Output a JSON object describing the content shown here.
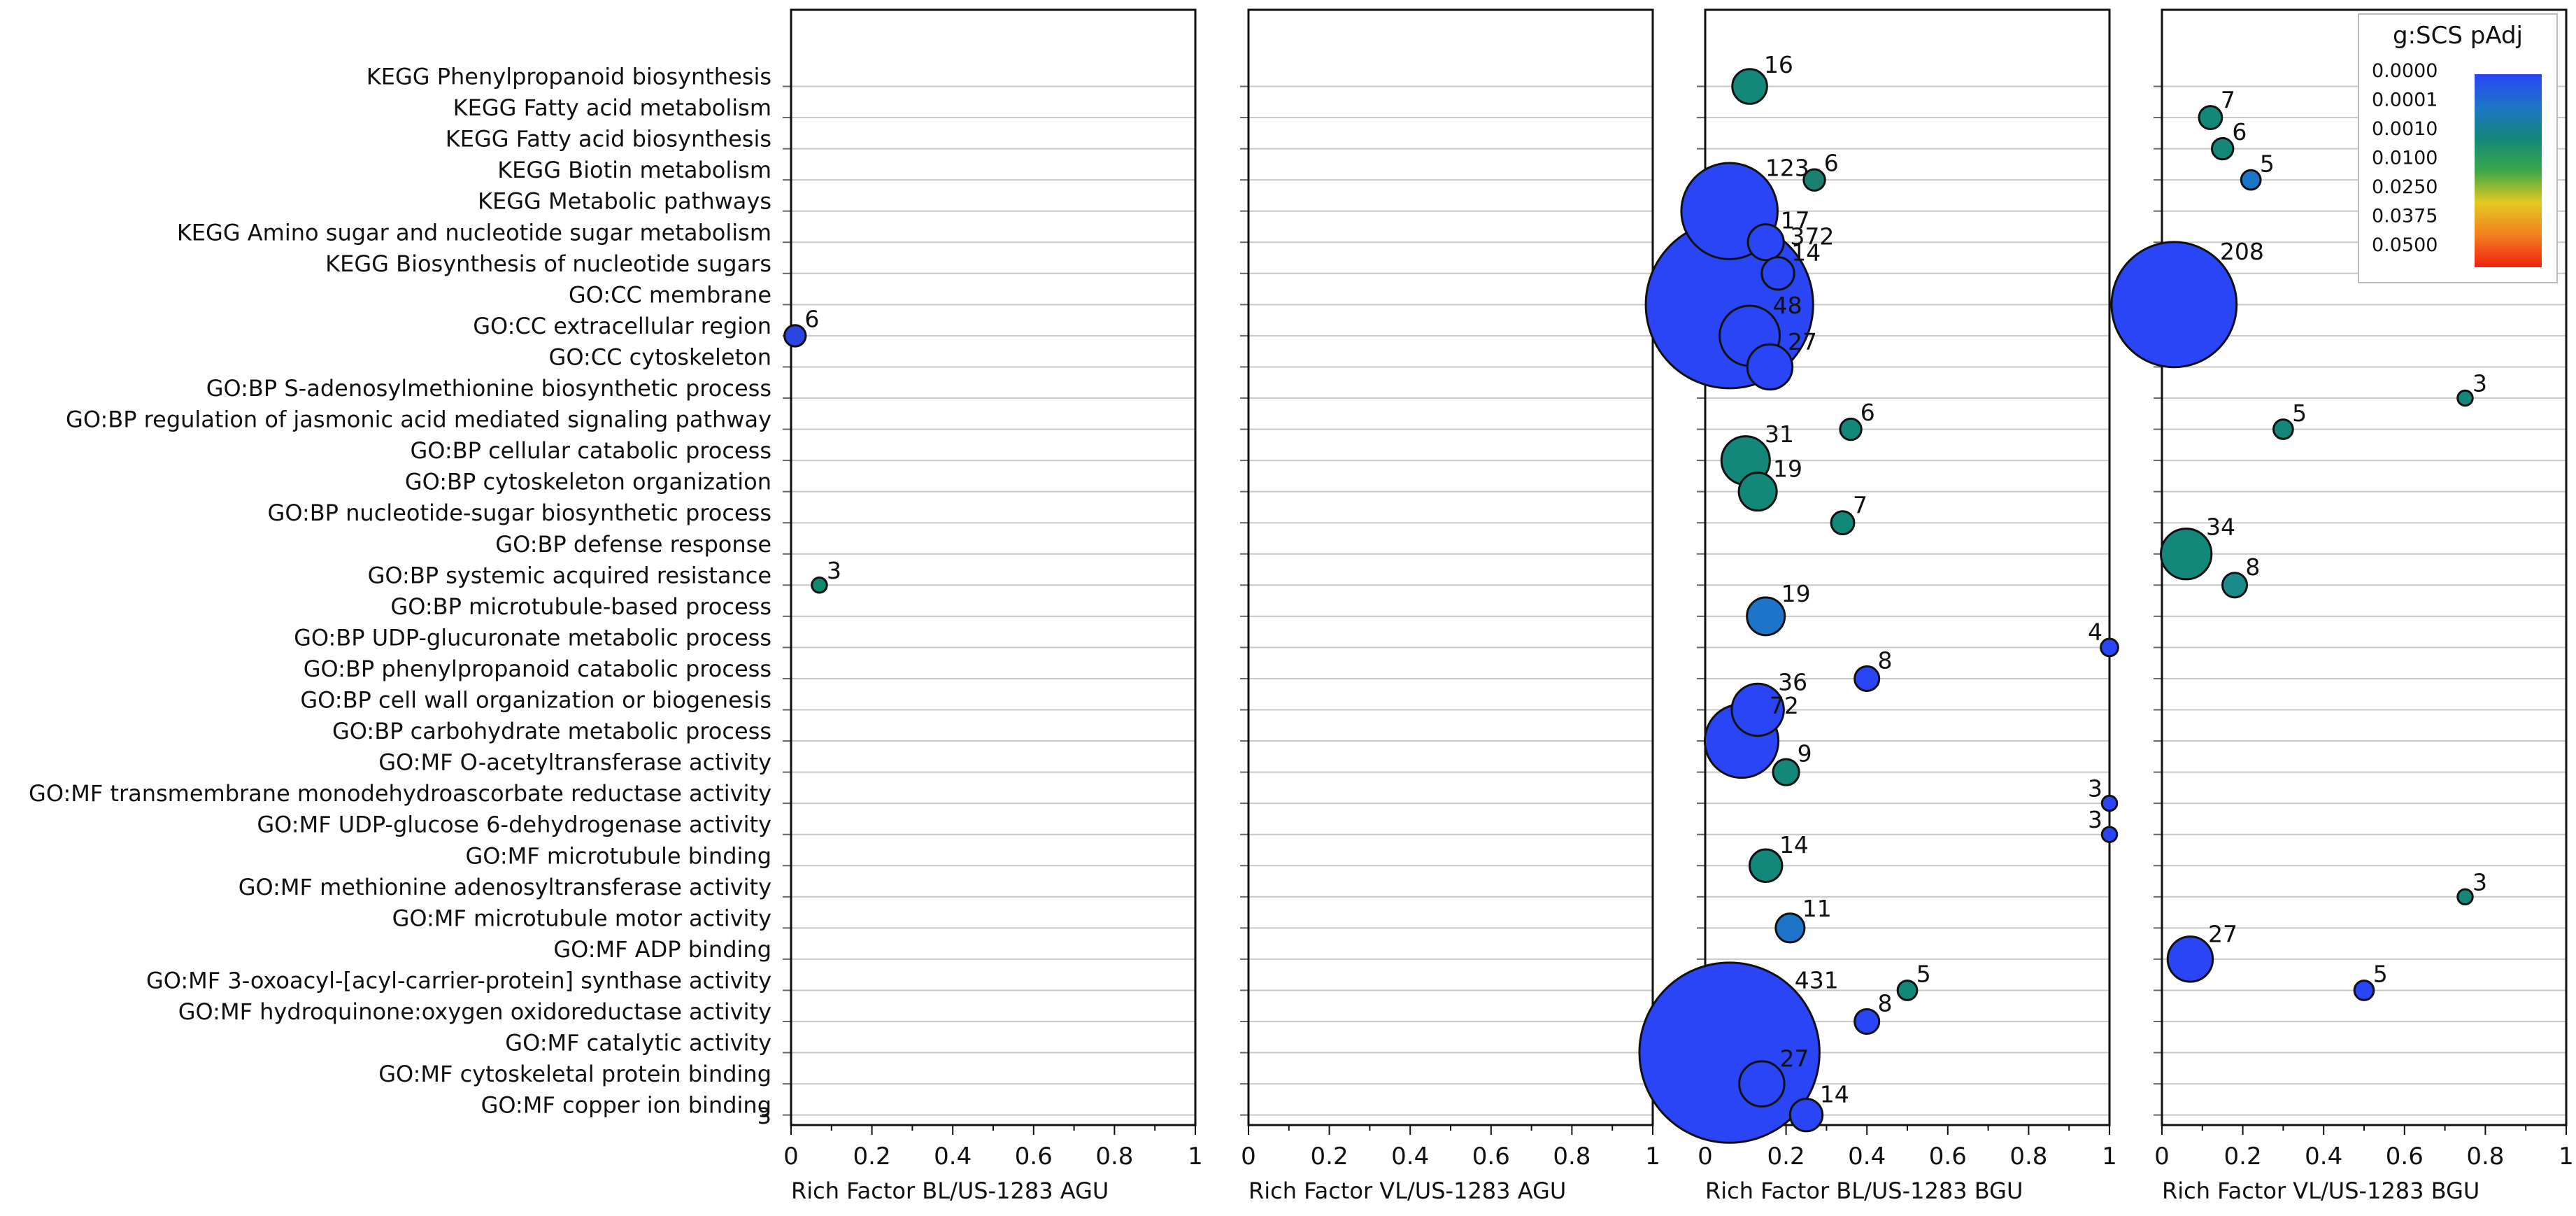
{
  "chart_data": {
    "type": "scatter",
    "subtype": "bubble",
    "categories": [
      "KEGG Phenylpropanoid biosynthesis",
      "KEGG Fatty acid metabolism",
      "KEGG Fatty acid biosynthesis",
      "KEGG Biotin metabolism",
      "KEGG Metabolic pathways",
      "KEGG Amino sugar and nucleotide sugar metabolism",
      "KEGG Biosynthesis of nucleotide sugars",
      "GO:CC membrane",
      "GO:CC extracellular region",
      "GO:CC cytoskeleton",
      "GO:BP S-adenosylmethionine biosynthetic process",
      "GO:BP regulation of jasmonic acid mediated signaling pathway",
      "GO:BP cellular catabolic process",
      "GO:BP cytoskeleton organization",
      "GO:BP nucleotide-sugar biosynthetic process",
      "GO:BP defense response",
      "GO:BP systemic acquired resistance",
      "GO:BP microtubule-based process",
      "GO:BP UDP-glucuronate metabolic process",
      "GO:BP phenylpropanoid catabolic process",
      "GO:BP cell wall organization or biogenesis",
      "GO:BP carbohydrate metabolic process",
      "GO:MF O-acetyltransferase activity",
      "GO:MF transmembrane monodehydroascorbate reductase activity",
      "GO:MF UDP-glucose 6-dehydrogenase activity",
      "GO:MF microtubule binding",
      "GO:MF methionine adenosyltransferase activity",
      "GO:MF microtubule motor activity",
      "GO:MF ADP binding",
      "GO:MF 3-oxoacyl-[acyl-carrier-protein] synthase activity",
      "GO:MF hydroquinone:oxygen oxidoreductase activity",
      "GO:MF catalytic activity",
      "GO:MF cytoskeletal protein binding",
      "GO:MF copper ion binding"
    ],
    "panels": [
      {
        "xlabel": "Rich Factor BL/US-1283 AGU",
        "points": [
          {
            "cat": 8,
            "x": 0.01,
            "count": 6,
            "label": "6",
            "color": "#2a45e0"
          },
          {
            "cat": 16,
            "x": 0.07,
            "count": 3,
            "label": "3",
            "color": "#0f8a6e"
          }
        ]
      },
      {
        "xlabel": "Rich Factor VL/US-1283 AGU",
        "points": []
      },
      {
        "xlabel": "Rich Factor BL/US-1283 BGU",
        "points": [
          {
            "cat": 0,
            "x": 0.11,
            "count": 16,
            "label": "16",
            "color": "#13877a"
          },
          {
            "cat": 3,
            "x": 0.27,
            "count": 6,
            "label": "6",
            "color": "#1a8070"
          },
          {
            "cat": 4,
            "x": 0.06,
            "count": 123,
            "label": "123",
            "color": "#2a45f5"
          },
          {
            "cat": 5,
            "x": 0.15,
            "count": 17,
            "label": "17",
            "color": "#2a45f5"
          },
          {
            "cat": 6,
            "x": 0.18,
            "count": 14,
            "label": "14",
            "color": "#2a45f5"
          },
          {
            "cat": 7,
            "x": 0.06,
            "count": 372,
            "label": "372",
            "color": "#2a45f5"
          },
          {
            "cat": 9,
            "x": 0.16,
            "count": 27,
            "label": "27",
            "color": "#2a45f5"
          },
          {
            "cat": 8,
            "x": 0.11,
            "count": 48,
            "label": "48",
            "color": "#2a45f5"
          },
          {
            "cat": 11,
            "x": 0.36,
            "count": 6,
            "label": "6",
            "color": "#13877a"
          },
          {
            "cat": 12,
            "x": 0.1,
            "count": 31,
            "label": "31",
            "color": "#13877a"
          },
          {
            "cat": 13,
            "x": 0.13,
            "count": 19,
            "label": "19",
            "color": "#13877a"
          },
          {
            "cat": 14,
            "x": 0.34,
            "count": 7,
            "label": "7",
            "color": "#13877a"
          },
          {
            "cat": 17,
            "x": 0.15,
            "count": 19,
            "label": "19",
            "color": "#1e74c8"
          },
          {
            "cat": 18,
            "x": 1.0,
            "count": 4,
            "label": "4",
            "color": "#2a45f5"
          },
          {
            "cat": 19,
            "x": 0.4,
            "count": 8,
            "label": "8",
            "color": "#2a45f5"
          },
          {
            "cat": 20,
            "x": 0.13,
            "count": 36,
            "label": "36",
            "color": "#2a45f5"
          },
          {
            "cat": 21,
            "x": 0.09,
            "count": 72,
            "label": "72",
            "color": "#2a45f5"
          },
          {
            "cat": 22,
            "x": 0.2,
            "count": 9,
            "label": "9",
            "color": "#13877a"
          },
          {
            "cat": 23,
            "x": 1.0,
            "count": 3,
            "label": "3",
            "color": "#2a45f5"
          },
          {
            "cat": 24,
            "x": 1.0,
            "count": 3,
            "label": "3",
            "color": "#2a45f5"
          },
          {
            "cat": 25,
            "x": 0.15,
            "count": 14,
            "label": "14",
            "color": "#13877a"
          },
          {
            "cat": 27,
            "x": 0.21,
            "count": 11,
            "label": "11",
            "color": "#1e74c8"
          },
          {
            "cat": 29,
            "x": 0.5,
            "count": 5,
            "label": "5",
            "color": "#13877a"
          },
          {
            "cat": 30,
            "x": 0.4,
            "count": 8,
            "label": "8",
            "color": "#2a45f5"
          },
          {
            "cat": 31,
            "x": 0.06,
            "count": 431,
            "label": "431",
            "color": "#2a45f5"
          },
          {
            "cat": 32,
            "x": 0.14,
            "count": 27,
            "label": "27",
            "color": "#2a45f5"
          },
          {
            "cat": 33,
            "x": 0.25,
            "count": 14,
            "label": "14",
            "color": "#2a45f5"
          }
        ]
      },
      {
        "xlabel": "Rich Factor VL/US-1283 BGU",
        "points": [
          {
            "cat": 1,
            "x": 0.12,
            "count": 7,
            "label": "7",
            "color": "#13877a"
          },
          {
            "cat": 2,
            "x": 0.15,
            "count": 6,
            "label": "6",
            "color": "#13877a"
          },
          {
            "cat": 3,
            "x": 0.22,
            "count": 5,
            "label": "5",
            "color": "#1e74c8"
          },
          {
            "cat": 7,
            "x": 0.03,
            "count": 208,
            "label": "208",
            "color": "#2a45f5"
          },
          {
            "cat": 10,
            "x": 0.75,
            "count": 3,
            "label": "3",
            "color": "#13877a"
          },
          {
            "cat": 11,
            "x": 0.3,
            "count": 5,
            "label": "5",
            "color": "#13877a"
          },
          {
            "cat": 15,
            "x": 0.06,
            "count": 34,
            "label": "34",
            "color": "#13877a"
          },
          {
            "cat": 16,
            "x": 0.18,
            "count": 8,
            "label": "8",
            "color": "#1a8a8a"
          },
          {
            "cat": 26,
            "x": 0.75,
            "count": 3,
            "label": "3",
            "color": "#13877a"
          },
          {
            "cat": 28,
            "x": 0.07,
            "count": 27,
            "label": "27",
            "color": "#2a45f5"
          },
          {
            "cat": 29,
            "x": 0.5,
            "count": 5,
            "label": "5",
            "color": "#2a45f5"
          }
        ]
      }
    ],
    "x_ticks": [
      "0",
      "0.2",
      "0.4",
      "0.6",
      "0.8",
      "1"
    ],
    "xlim": [
      0,
      1
    ],
    "grid": true,
    "legend": {
      "title": "g:SCS pAdj",
      "placement": "top-right",
      "ticks": [
        "0.0000",
        "0.0001",
        "0.0010",
        "0.0100",
        "0.0250",
        "0.0375",
        "0.0500"
      ],
      "colors": [
        "#2a45f5",
        "#1e74c8",
        "#13877a",
        "#3aa84a",
        "#e4c91f",
        "#f08020",
        "#f02010"
      ]
    },
    "stray_tick_label": "3"
  }
}
